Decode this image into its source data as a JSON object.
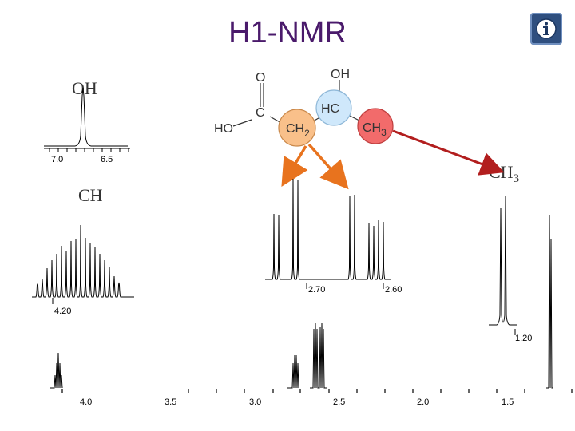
{
  "slide": {
    "title": "H1-NMR",
    "title_color": "#4a1a6b",
    "info_icon": "info-icon"
  },
  "labels": {
    "oh": "OH",
    "ch": "CH",
    "ch3_main": "CH",
    "ch3_sub": "3"
  },
  "molecule": {
    "atoms": {
      "o_top": "O",
      "c": "C",
      "ho": "HO",
      "oh": "OH",
      "hc": "HC",
      "ch2_main": "CH",
      "ch2_sub": "2",
      "ch3_main": "CH",
      "ch3_sub": "3"
    },
    "colors": {
      "ch2_fill": "#f9c08a",
      "ch2_stroke": "#c9884a",
      "hc_fill": "#cfe8fb",
      "hc_stroke": "#8fb8d8",
      "ch3_fill": "#f26b6b",
      "ch3_stroke": "#c04040",
      "arrow_orange": "#e8731e",
      "arrow_red": "#b21e1e"
    }
  },
  "spectrum": {
    "main_axis_ticks": [
      "4.0",
      "3.5",
      "3.0",
      "2.5",
      "2.0",
      "1.5"
    ],
    "inset_oh_ticks": [
      "7.0",
      "6.5"
    ],
    "inset_ch_tick": "4.20",
    "inset_ch2_ticks": [
      "2.70",
      "2.60"
    ],
    "inset_ch3_tick": "1.20"
  }
}
